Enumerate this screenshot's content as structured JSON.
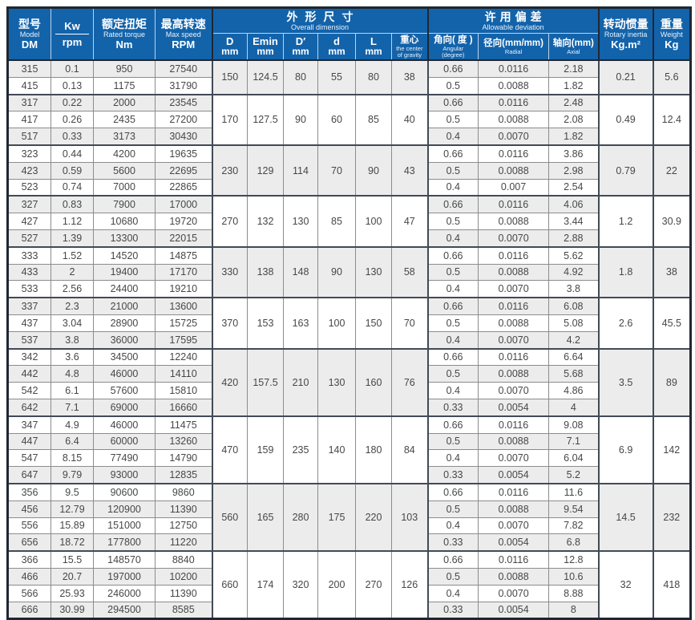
{
  "table": {
    "header": {
      "model": {
        "zh": "型号",
        "en": "Model",
        "code": "DM"
      },
      "kw": {
        "top": "Kw",
        "bottom": "rpm"
      },
      "torque": {
        "zh": "额定扭矩",
        "en": "Rated torque",
        "unit": "Nm"
      },
      "speed": {
        "zh": "最高转速",
        "en": "Max speed",
        "unit": "RPM"
      },
      "overall": {
        "zh": "外形尺寸",
        "en": "Overall dimension"
      },
      "dims": [
        {
          "sym": "D",
          "unit": "mm"
        },
        {
          "sym": "Emin",
          "unit": "mm"
        },
        {
          "sym": "D′",
          "unit": "mm"
        },
        {
          "sym": "d",
          "unit": "mm"
        },
        {
          "sym": "L",
          "unit": "mm"
        },
        {
          "sym": "重心",
          "en1": "the center",
          "en2": "of gravity"
        }
      ],
      "deviation": {
        "zh": "许用偏差",
        "en": "Allowable deviation"
      },
      "dev_cols": [
        {
          "zh": "角向( 度 )",
          "en1": "Angular",
          "en2": "(degree)"
        },
        {
          "zh": "径向(mm/mm)",
          "en1": "Radial",
          "en2": ""
        },
        {
          "zh": "轴向(mm)",
          "en1": "Axial",
          "en2": ""
        }
      ],
      "inertia": {
        "zh": "转动惯量",
        "en": "Rotary inertia",
        "unit": "Kg.m²"
      },
      "weight": {
        "zh": "重量",
        "en": "Weight",
        "unit": "Kg"
      }
    },
    "groups": [
      {
        "rows": [
          [
            "315",
            "0.1",
            "950",
            "27540"
          ],
          [
            "415",
            "0.13",
            "1175",
            "31790"
          ]
        ],
        "dims": [
          "150",
          "124.5",
          "80",
          "55",
          "80",
          "38"
        ],
        "dev": [
          [
            "0.66",
            "0.0116",
            "2.18"
          ],
          [
            "0.5",
            "0.0088",
            "1.82"
          ]
        ],
        "inertia": "0.21",
        "weight": "5.6"
      },
      {
        "rows": [
          [
            "317",
            "0.22",
            "2000",
            "23545"
          ],
          [
            "417",
            "0.26",
            "2435",
            "27200"
          ],
          [
            "517",
            "0.33",
            "3173",
            "30430"
          ]
        ],
        "dims": [
          "170",
          "127.5",
          "90",
          "60",
          "85",
          "40"
        ],
        "dev": [
          [
            "0.66",
            "0.0116",
            "2.48"
          ],
          [
            "0.5",
            "0.0088",
            "2.08"
          ],
          [
            "0.4",
            "0.0070",
            "1.82"
          ]
        ],
        "inertia": "0.49",
        "weight": "12.4"
      },
      {
        "rows": [
          [
            "323",
            "0.44",
            "4200",
            "19635"
          ],
          [
            "423",
            "0.59",
            "5600",
            "22695"
          ],
          [
            "523",
            "0.74",
            "7000",
            "22865"
          ]
        ],
        "dims": [
          "230",
          "129",
          "114",
          "70",
          "90",
          "43"
        ],
        "dev": [
          [
            "0.66",
            "0.0116",
            "3.86"
          ],
          [
            "0.5",
            "0.0088",
            "2.98"
          ],
          [
            "0.4",
            "0.007",
            "2.54"
          ]
        ],
        "inertia": "0.79",
        "weight": "22"
      },
      {
        "rows": [
          [
            "327",
            "0.83",
            "7900",
            "17000"
          ],
          [
            "427",
            "1.12",
            "10680",
            "19720"
          ],
          [
            "527",
            "1.39",
            "13300",
            "22015"
          ]
        ],
        "dims": [
          "270",
          "132",
          "130",
          "85",
          "100",
          "47"
        ],
        "dev": [
          [
            "0.66",
            "0.0116",
            "4.06"
          ],
          [
            "0.5",
            "0.0088",
            "3.44"
          ],
          [
            "0.4",
            "0.0070",
            "2.88"
          ]
        ],
        "inertia": "1.2",
        "weight": "30.9"
      },
      {
        "rows": [
          [
            "333",
            "1.52",
            "14520",
            "14875"
          ],
          [
            "433",
            "2",
            "19400",
            "17170"
          ],
          [
            "533",
            "2.56",
            "24400",
            "19210"
          ]
        ],
        "dims": [
          "330",
          "138",
          "148",
          "90",
          "130",
          "58"
        ],
        "dev": [
          [
            "0.66",
            "0.0116",
            "5.62"
          ],
          [
            "0.5",
            "0.0088",
            "4.92"
          ],
          [
            "0.4",
            "0.0070",
            "3.8"
          ]
        ],
        "inertia": "1.8",
        "weight": "38"
      },
      {
        "rows": [
          [
            "337",
            "2.3",
            "21000",
            "13600"
          ],
          [
            "437",
            "3.04",
            "28900",
            "15725"
          ],
          [
            "537",
            "3.8",
            "36000",
            "17595"
          ]
        ],
        "dims": [
          "370",
          "153",
          "163",
          "100",
          "150",
          "70"
        ],
        "dev": [
          [
            "0.66",
            "0.0116",
            "6.08"
          ],
          [
            "0.5",
            "0.0088",
            "5.08"
          ],
          [
            "0.4",
            "0.0070",
            "4.2"
          ]
        ],
        "inertia": "2.6",
        "weight": "45.5"
      },
      {
        "rows": [
          [
            "342",
            "3.6",
            "34500",
            "12240"
          ],
          [
            "442",
            "4.8",
            "46000",
            "14110"
          ],
          [
            "542",
            "6.1",
            "57600",
            "15810"
          ],
          [
            "642",
            "7.1",
            "69000",
            "16660"
          ]
        ],
        "dims": [
          "420",
          "157.5",
          "210",
          "130",
          "160",
          "76"
        ],
        "dev": [
          [
            "0.66",
            "0.0116",
            "6.64"
          ],
          [
            "0.5",
            "0.0088",
            "5.68"
          ],
          [
            "0.4",
            "0.0070",
            "4.86"
          ],
          [
            "0.33",
            "0.0054",
            "4"
          ]
        ],
        "inertia": "3.5",
        "weight": "89"
      },
      {
        "rows": [
          [
            "347",
            "4.9",
            "46000",
            "11475"
          ],
          [
            "447",
            "6.4",
            "60000",
            "13260"
          ],
          [
            "547",
            "8.15",
            "77490",
            "14790"
          ],
          [
            "647",
            "9.79",
            "93000",
            "12835"
          ]
        ],
        "dims": [
          "470",
          "159",
          "235",
          "140",
          "180",
          "84"
        ],
        "dev": [
          [
            "0.66",
            "0.0116",
            "9.08"
          ],
          [
            "0.5",
            "0.0088",
            "7.1"
          ],
          [
            "0.4",
            "0.0070",
            "6.04"
          ],
          [
            "0.33",
            "0.0054",
            "5.2"
          ]
        ],
        "inertia": "6.9",
        "weight": "142"
      },
      {
        "rows": [
          [
            "356",
            "9.5",
            "90600",
            "9860"
          ],
          [
            "456",
            "12.79",
            "120900",
            "11390"
          ],
          [
            "556",
            "15.89",
            "151000",
            "12750"
          ],
          [
            "656",
            "18.72",
            "177800",
            "11220"
          ]
        ],
        "dims": [
          "560",
          "165",
          "280",
          "175",
          "220",
          "103"
        ],
        "dev": [
          [
            "0.66",
            "0.0116",
            "11.6"
          ],
          [
            "0.5",
            "0.0088",
            "9.54"
          ],
          [
            "0.4",
            "0.0070",
            "7.82"
          ],
          [
            "0.33",
            "0.0054",
            "6.8"
          ]
        ],
        "inertia": "14.5",
        "weight": "232"
      },
      {
        "rows": [
          [
            "366",
            "15.5",
            "148570",
            "8840"
          ],
          [
            "466",
            "20.7",
            "197000",
            "10200"
          ],
          [
            "566",
            "25.93",
            "246000",
            "11390"
          ],
          [
            "666",
            "30.99",
            "294500",
            "8585"
          ]
        ],
        "dims": [
          "660",
          "174",
          "320",
          "200",
          "270",
          "126"
        ],
        "dev": [
          [
            "0.66",
            "0.0116",
            "12.8"
          ],
          [
            "0.5",
            "0.0088",
            "10.6"
          ],
          [
            "0.4",
            "0.0070",
            "8.88"
          ],
          [
            "0.33",
            "0.0054",
            "8"
          ]
        ],
        "inertia": "32",
        "weight": "418"
      }
    ]
  },
  "colors": {
    "header_blue": "#1363aa",
    "outer_border": "#1f2732",
    "stripe_gray": "#ececec",
    "cell_text": "#474747"
  }
}
